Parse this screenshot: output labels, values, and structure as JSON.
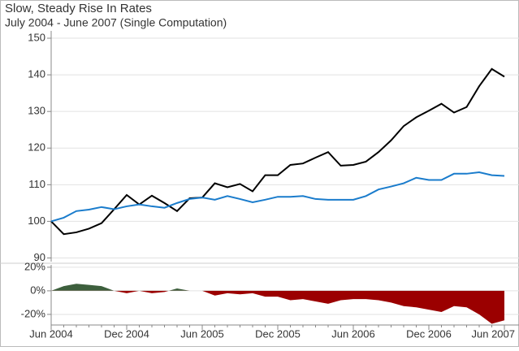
{
  "chart_data": [
    {
      "type": "line",
      "title": "Slow, Steady Rise In Rates",
      "subtitle": "July 2004 - June 2007 (Single Computation)",
      "categories": [
        "Jun 2004",
        null,
        null,
        null,
        null,
        null,
        "Dec 2004",
        null,
        null,
        null,
        null,
        null,
        "Jun 2005",
        null,
        null,
        null,
        null,
        null,
        "Dec 2005",
        null,
        null,
        null,
        null,
        null,
        "Jun 2006",
        null,
        null,
        null,
        null,
        null,
        "Dec 2006",
        null,
        null,
        null,
        null,
        null,
        "Jun 2007"
      ],
      "series": [
        {
          "color": "#000000",
          "values": [
            100,
            96.5,
            97,
            98,
            99.5,
            103.3,
            107.2,
            104.6,
            107,
            105,
            102.8,
            106.3,
            106.5,
            110.4,
            109.3,
            110.2,
            108.2,
            112.6,
            112.6,
            115.4,
            115.8,
            117.4,
            118.9,
            115.2,
            115.4,
            116.3,
            118.9,
            122.1,
            126,
            128.4,
            130.2,
            132.1,
            129.7,
            131.2,
            136.9,
            141.6,
            139.5
          ]
        },
        {
          "color": "#1a7ccc",
          "values": [
            100,
            101,
            102.8,
            103.2,
            103.9,
            103.3,
            104.1,
            104.6,
            104.1,
            103.7,
            105,
            106.1,
            106.5,
            105.9,
            106.9,
            106.1,
            105.2,
            105.9,
            106.7,
            106.7,
            106.9,
            106.1,
            105.9,
            105.9,
            105.9,
            106.9,
            108.7,
            109.5,
            110.4,
            111.9,
            111.3,
            111.3,
            113,
            113,
            113.4,
            112.6,
            112.4
          ]
        }
      ],
      "ylim": [
        89,
        152
      ],
      "yticks": [
        90,
        100,
        110,
        120,
        130,
        140,
        150
      ],
      "grid": true
    },
    {
      "type": "area",
      "values": [
        0,
        4,
        6,
        5,
        4,
        0,
        -2,
        0,
        -2,
        -1,
        2,
        0,
        0,
        -4,
        -2,
        -3,
        -2,
        -5,
        -5,
        -8,
        -7,
        -9,
        -11,
        -8,
        -7,
        -7,
        -8,
        -10,
        -13,
        -14,
        -16,
        -18,
        -13,
        -14,
        -20,
        -28,
        -25
      ],
      "color_positive": "#3d5f3d",
      "color_negative": "#9b0000",
      "ylim": [
        -29,
        22
      ],
      "yticks": [
        {
          "value": 20,
          "label": "20%"
        },
        {
          "value": 0,
          "label": "0%"
        },
        {
          "value": -20,
          "label": "-20%"
        }
      ],
      "grid": true
    }
  ]
}
